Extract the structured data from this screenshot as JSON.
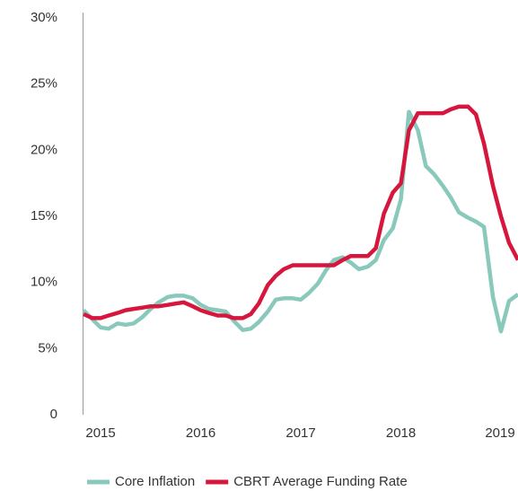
{
  "chart_data": {
    "type": "line",
    "x": [
      2014.83,
      2014.92,
      2015.0,
      2015.08,
      2015.17,
      2015.25,
      2015.33,
      2015.42,
      2015.5,
      2015.58,
      2015.67,
      2015.75,
      2015.83,
      2015.92,
      2016.0,
      2016.08,
      2016.17,
      2016.25,
      2016.33,
      2016.42,
      2016.5,
      2016.58,
      2016.67,
      2016.75,
      2016.83,
      2016.92,
      2017.0,
      2017.08,
      2017.17,
      2017.25,
      2017.33,
      2017.42,
      2017.5,
      2017.58,
      2017.67,
      2017.75,
      2017.83,
      2017.92,
      2018.0,
      2018.08,
      2018.17,
      2018.25,
      2018.33,
      2018.42,
      2018.5,
      2018.58,
      2018.67,
      2018.75,
      2018.83,
      2018.92,
      2019.0,
      2019.08,
      2019.17
    ],
    "series": [
      {
        "name": "Core Inflation",
        "color": "#88c9bb",
        "values": [
          7.9,
          7.2,
          6.6,
          6.5,
          6.9,
          6.8,
          6.9,
          7.4,
          8.0,
          8.5,
          8.9,
          9.0,
          9.0,
          8.8,
          8.3,
          8.0,
          7.9,
          7.8,
          7.1,
          6.4,
          6.5,
          7.0,
          7.8,
          8.7,
          8.8,
          8.8,
          8.7,
          9.2,
          9.9,
          10.9,
          11.7,
          11.9,
          11.5,
          11.0,
          11.2,
          11.7,
          13.2,
          14.1,
          16.3,
          22.9,
          21.5,
          18.8,
          18.2,
          17.3,
          16.4,
          15.3,
          14.9,
          14.6,
          14.2,
          8.9,
          6.3,
          8.6,
          9.1
        ]
      },
      {
        "name": "CBRT Average Funding Rate",
        "color": "#d6163c",
        "values": [
          7.6,
          7.3,
          7.3,
          7.5,
          7.7,
          7.9,
          8.0,
          8.1,
          8.2,
          8.2,
          8.3,
          8.4,
          8.5,
          8.2,
          7.9,
          7.7,
          7.5,
          7.5,
          7.3,
          7.3,
          7.6,
          8.4,
          9.8,
          10.5,
          11.0,
          11.3,
          11.3,
          11.3,
          11.3,
          11.3,
          11.3,
          11.7,
          12.0,
          12.0,
          12.0,
          12.6,
          15.2,
          16.8,
          17.5,
          21.5,
          22.8,
          22.8,
          22.8,
          22.8,
          23.1,
          23.3,
          23.3,
          22.7,
          20.5,
          17.3,
          15.0,
          13.0,
          11.7
        ]
      }
    ],
    "xlim": [
      2014.82,
      2019.17
    ],
    "xticks": [
      2015,
      2016,
      2017,
      2018,
      2019
    ],
    "ylim": [
      0,
      30
    ],
    "yticks": [
      0,
      {
        "value": 5,
        "label": "5%"
      },
      {
        "value": 10,
        "label": "10%"
      },
      {
        "value": 15,
        "label": "15%"
      },
      {
        "value": 20,
        "label": "20%"
      },
      {
        "value": 25,
        "label": "25%"
      },
      {
        "value": 30,
        "label": "30%"
      }
    ],
    "grid": false,
    "legend": "bottom"
  }
}
